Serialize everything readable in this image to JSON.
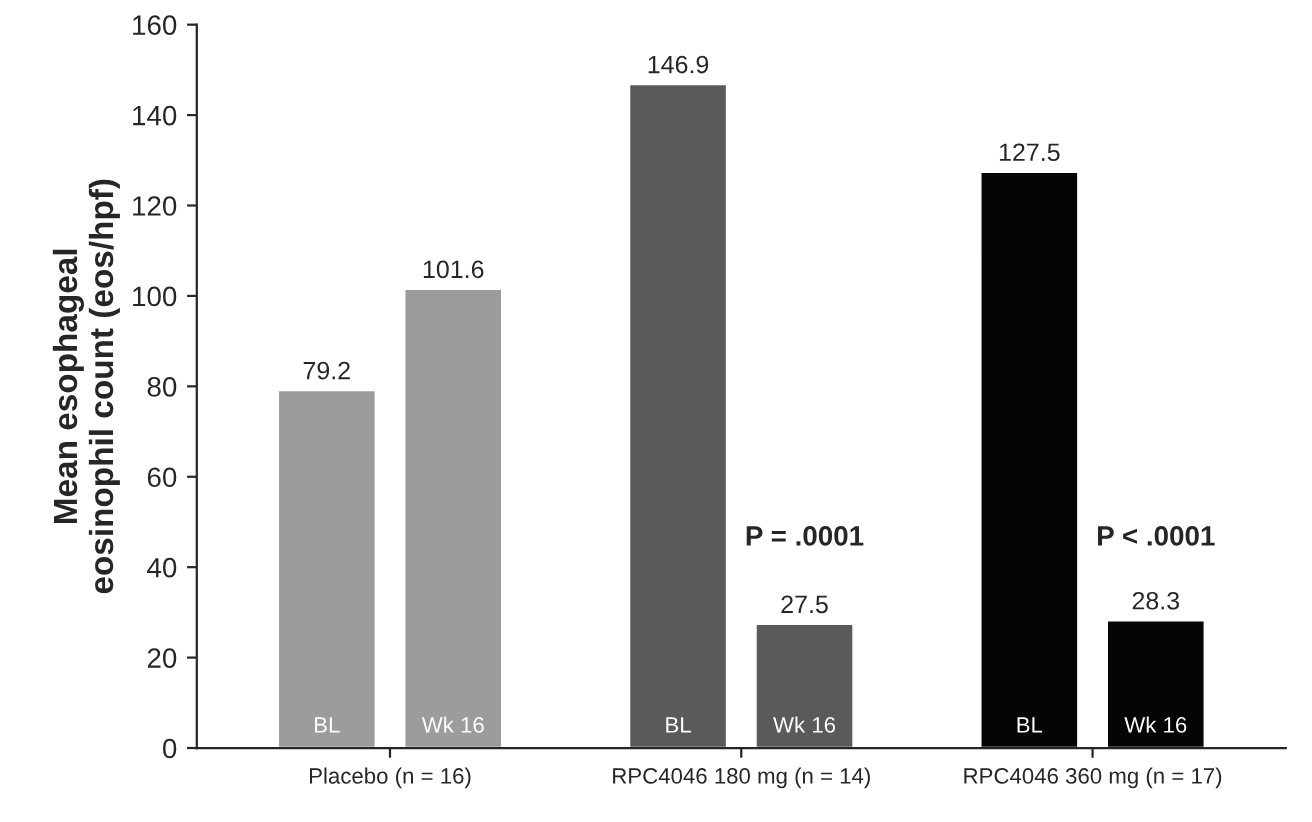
{
  "chart_data": {
    "type": "bar",
    "ylabel": "Mean esophageal\neosinophil count (eos/hpf)",
    "categories": [
      "Placebo (n = 16)",
      "RPC4046 180 mg (n = 14)",
      "RPC4046 360 mg (n = 17)"
    ],
    "series": [
      {
        "name": "BL",
        "colors": [
          "#9c9c9c",
          "#5a5a5a",
          "#050505"
        ],
        "values": [
          79.2,
          146.9,
          127.5
        ]
      },
      {
        "name": "Wk 16",
        "colors": [
          "#9c9c9c",
          "#5a5a5a",
          "#050505"
        ],
        "values": [
          101.6,
          27.5,
          28.3
        ]
      }
    ],
    "ylim": [
      0,
      160
    ],
    "yticks": [
      0,
      20,
      40,
      60,
      80,
      100,
      120,
      140,
      160
    ],
    "data_labels": true,
    "grid": false,
    "legend": false,
    "annotations": [
      "P = .0001",
      "P < .0001"
    ]
  }
}
